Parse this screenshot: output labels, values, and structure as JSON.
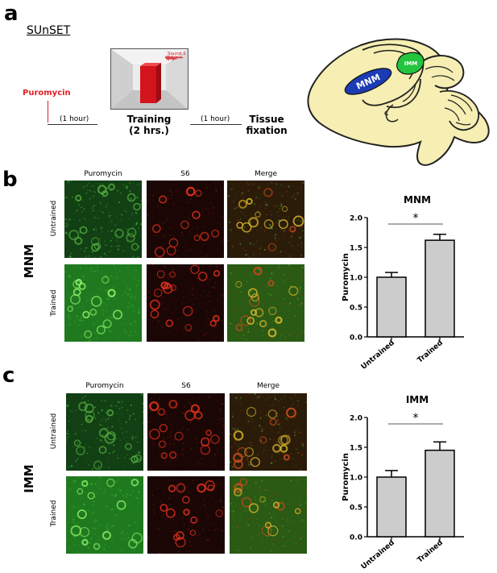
{
  "panel_a": {
    "letter": "a",
    "protocol": "SUnSET",
    "puromycin": "Puromycin",
    "interval1": "(1 hour)",
    "training": "Training",
    "training_duration": "(2 hrs.)",
    "interval2": "(1 hour)",
    "tissue_line1": "Tissue",
    "tissue_line2": "fixation",
    "sound_label": "Sound 1",
    "brain_labels": {
      "mnm": "MNM",
      "imm": "IMM"
    },
    "colors": {
      "puromycin": "#e31e24",
      "brain": "#f6eeb2",
      "mnm": "#1c3bb4",
      "imm": "#24c43e",
      "box": "#d4141c"
    }
  },
  "panel_b": {
    "letter": "b",
    "region": "MNM",
    "column_headers": [
      "Puromycin",
      "S6",
      "Merge"
    ],
    "row_labels": [
      "Untrained",
      "Trained"
    ]
  },
  "panel_c": {
    "letter": "c",
    "region": "IMM",
    "column_headers": [
      "Puromycin",
      "S6",
      "Merge"
    ],
    "row_labels": [
      "Untrained",
      "Trained"
    ]
  },
  "chart_data": [
    {
      "type": "bar",
      "title": "MNM",
      "categories": [
        "Untrained",
        "Trained"
      ],
      "values": [
        1.0,
        1.62
      ],
      "errors": [
        0.08,
        0.1
      ],
      "ylabel": "Puromycin",
      "ylim": [
        0,
        2.0
      ],
      "yticks": [
        "0.0",
        "0.5",
        "1.0",
        "1.5",
        "2.0"
      ],
      "significance": "*",
      "bar_color": "#cccccc"
    },
    {
      "type": "bar",
      "title": "IMM",
      "categories": [
        "Untrained",
        "Trained"
      ],
      "values": [
        1.0,
        1.45
      ],
      "errors": [
        0.11,
        0.14
      ],
      "ylabel": "Puromycin",
      "ylim": [
        0,
        2.0
      ],
      "yticks": [
        "0.0",
        "0.5",
        "1.0",
        "1.5",
        "2.0"
      ],
      "significance": "*",
      "bar_color": "#cccccc"
    }
  ]
}
